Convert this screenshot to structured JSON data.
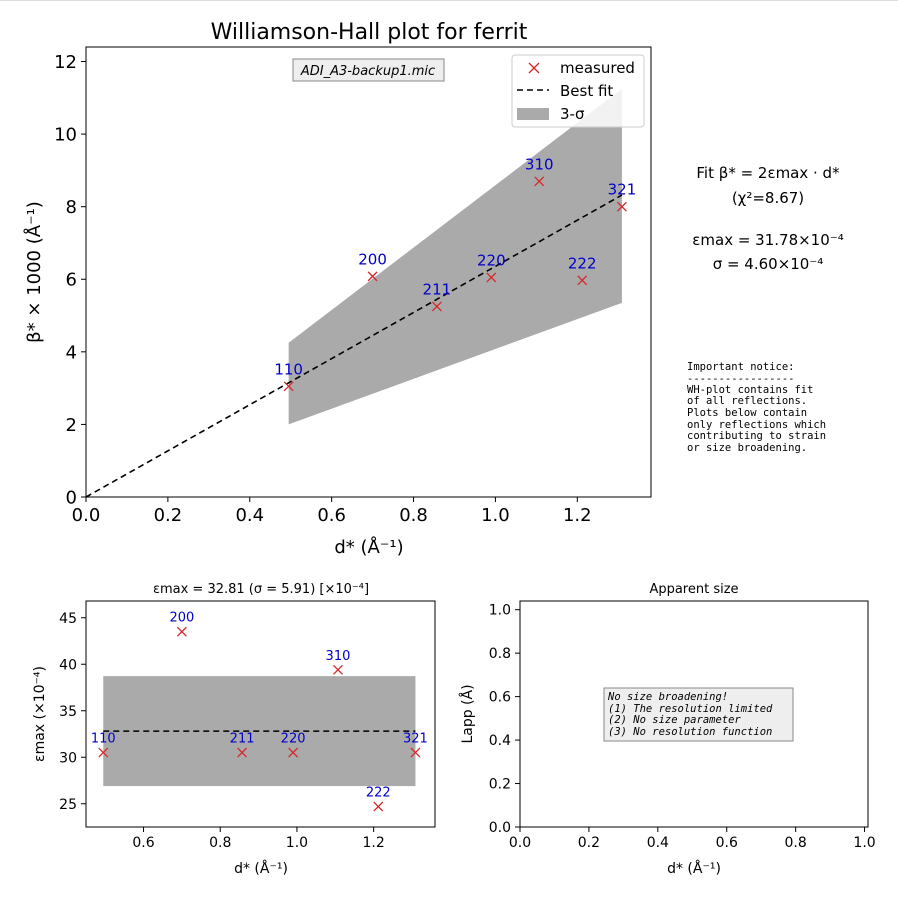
{
  "chart_data": [
    {
      "type": "scatter",
      "title": "Williamson-Hall plot for ferrit",
      "xlabel": "d* (Å⁻¹)",
      "ylabel": "β* × 1000 (Å⁻¹)",
      "xlim": [
        0.0,
        1.38
      ],
      "ylim": [
        0,
        12.4
      ],
      "xticks": [
        "0.0",
        "0.2",
        "0.4",
        "0.6",
        "0.8",
        "1.0",
        "1.2"
      ],
      "yticks": [
        "0",
        "2",
        "4",
        "6",
        "8",
        "10",
        "12"
      ],
      "file_label": "ADI_A3-backup1.mic",
      "legend": {
        "placement": "top-right",
        "entries": [
          "measured",
          "Best fit",
          "3-σ"
        ]
      },
      "points": [
        {
          "label": "110",
          "x": 0.495,
          "y": 3.05
        },
        {
          "label": "200",
          "x": 0.7,
          "y": 6.08
        },
        {
          "label": "211",
          "x": 0.857,
          "y": 5.25
        },
        {
          "label": "220",
          "x": 0.99,
          "y": 6.05
        },
        {
          "label": "310",
          "x": 1.107,
          "y": 8.7
        },
        {
          "label": "222",
          "x": 1.212,
          "y": 5.97
        },
        {
          "label": "321",
          "x": 1.309,
          "y": 8.0
        }
      ],
      "fit_line": {
        "x": [
          0.0,
          1.309
        ],
        "y": [
          0.0,
          8.32
        ]
      },
      "band": {
        "x": [
          0.495,
          1.309
        ],
        "upper": [
          4.25,
          11.25
        ],
        "lower": [
          2.0,
          5.35
        ]
      },
      "colors": {
        "marker": "#d62728",
        "label": "#0000cc",
        "band": "#aaaaaa",
        "fit": "#000000"
      }
    },
    {
      "type": "scatter",
      "title": "εmax = 32.81 (σ = 5.91) [×10⁻⁴]",
      "xlabel": "d* (Å⁻¹)",
      "ylabel": "εmax (×10⁻⁴)",
      "xlim": [
        0.45,
        1.36
      ],
      "ylim": [
        22.5,
        46.8
      ],
      "xticks": [
        "0.6",
        "0.8",
        "1.0",
        "1.2"
      ],
      "yticks": [
        "25",
        "30",
        "35",
        "40",
        "45"
      ],
      "points": [
        {
          "label": "110",
          "x": 0.495,
          "y": 30.5
        },
        {
          "label": "200",
          "x": 0.7,
          "y": 43.5
        },
        {
          "label": "211",
          "x": 0.857,
          "y": 30.5
        },
        {
          "label": "220",
          "x": 0.99,
          "y": 30.5
        },
        {
          "label": "310",
          "x": 1.107,
          "y": 39.4
        },
        {
          "label": "222",
          "x": 1.212,
          "y": 24.7
        },
        {
          "label": "321",
          "x": 1.309,
          "y": 30.5
        }
      ],
      "mean_line": {
        "x": [
          0.495,
          1.309
        ],
        "y": 32.81
      },
      "band": {
        "x": [
          0.495,
          1.309
        ],
        "upper": 38.72,
        "lower": 26.9
      }
    },
    {
      "type": "scatter",
      "title": "Apparent size",
      "xlabel": "d* (Å⁻¹)",
      "ylabel": "Lapp (Å)",
      "xlim": [
        0.0,
        1.01
      ],
      "ylim": [
        0.0,
        1.04
      ],
      "xticks": [
        "0.0",
        "0.2",
        "0.4",
        "0.6",
        "0.8",
        "1.0"
      ],
      "yticks": [
        "0.0",
        "0.2",
        "0.4",
        "0.6",
        "0.8",
        "1.0"
      ],
      "notice": [
        "No size broadening!",
        "(1) The resolution limited",
        "(2) No size parameter",
        "(3) No resolution function"
      ]
    }
  ],
  "side_text": {
    "fit_formula": "Fit β* = 2εmax · d*",
    "chi2": "(χ²=8.67)",
    "eps_max": "εmax = 31.78×10⁻⁴",
    "sigma": "σ = 4.60×10⁻⁴",
    "notice": [
      "Important notice:",
      "-----------------",
      "WH-plot contains fit",
      "of all reflections.",
      "Plots below contain",
      "only reflections which",
      "contributing to strain",
      "or size broadening."
    ]
  }
}
